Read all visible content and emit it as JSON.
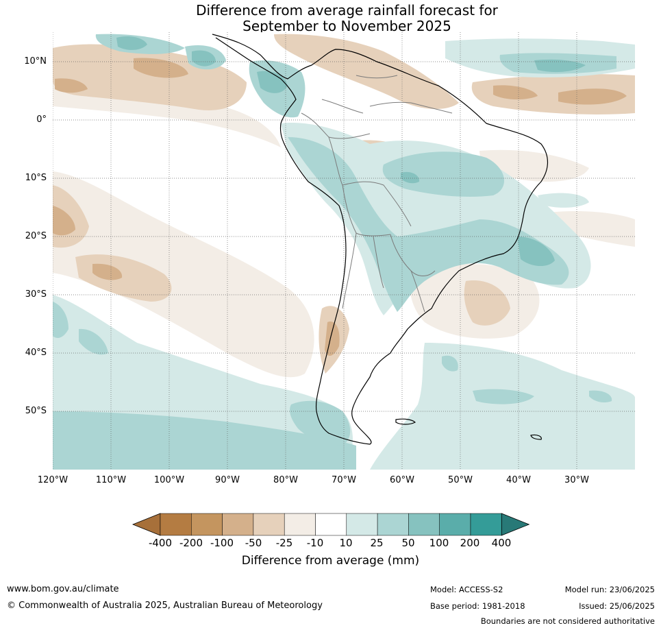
{
  "title_line1": "Difference from average rainfall forecast for",
  "title_line2": "September to November 2025",
  "lat_labels": [
    "10°N",
    "0°",
    "10°S",
    "20°S",
    "30°S",
    "40°S",
    "50°S"
  ],
  "lon_labels": [
    "120°W",
    "110°W",
    "100°W",
    "90°W",
    "80°W",
    "70°W",
    "60°W",
    "50°W",
    "40°W",
    "30°W"
  ],
  "legend": {
    "title": "Difference from average (mm)",
    "ticks": [
      "-400",
      "-200",
      "-100",
      "-50",
      "-25",
      "-10",
      "10",
      "25",
      "50",
      "100",
      "200",
      "400"
    ],
    "colors": [
      "#a7703a",
      "#b47c42",
      "#c4955f",
      "#d4b08b",
      "#e6d1bb",
      "#f3ede6",
      "#ffffff",
      "#d4e9e7",
      "#abd5d3",
      "#86c2bf",
      "#5aadaa",
      "#349c98",
      "#287977"
    ]
  },
  "footer": {
    "website": "www.bom.gov.au/climate",
    "copyright": "© Commonwealth of Australia 2025, Australian Bureau of Meteorology",
    "model": "Model: ACCESS-S2",
    "base_period": "Base period: 1981-2018",
    "model_run": "Model run: 23/06/2025",
    "issued": "Issued: 25/06/2025",
    "disclaimer": "Boundaries are not considered authoritative"
  }
}
